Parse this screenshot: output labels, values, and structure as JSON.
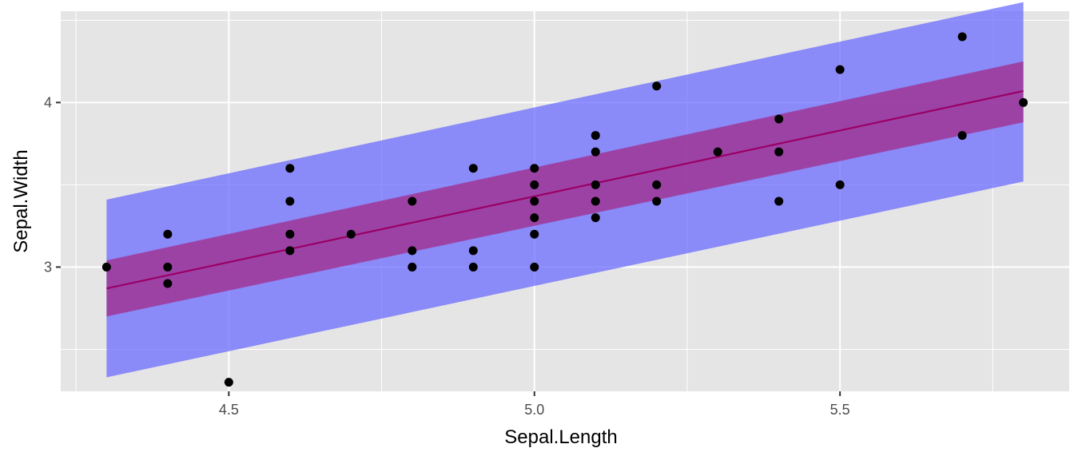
{
  "chart_data": {
    "type": "scatter",
    "title": "",
    "xlabel": "Sepal.Length",
    "ylabel": "Sepal.Width",
    "xlim": [
      4.225,
      5.875
    ],
    "ylim": [
      2.245,
      4.555
    ],
    "x_ticks": [
      {
        "value": 4.5,
        "label": "4.5"
      },
      {
        "value": 5.0,
        "label": "5.0"
      },
      {
        "value": 5.5,
        "label": "5.5"
      }
    ],
    "x_minor_ticks": [
      4.25,
      4.75,
      5.25,
      5.75
    ],
    "y_ticks": [
      {
        "value": 3,
        "label": "3"
      },
      {
        "value": 4,
        "label": "4"
      }
    ],
    "y_minor_ticks": [
      2.5,
      3.5,
      4.5
    ],
    "grid": true,
    "points": [
      [
        4.3,
        3.0
      ],
      [
        4.4,
        2.9
      ],
      [
        4.4,
        3.0
      ],
      [
        4.4,
        3.2
      ],
      [
        4.5,
        2.3
      ],
      [
        4.6,
        3.1
      ],
      [
        4.6,
        3.2
      ],
      [
        4.6,
        3.4
      ],
      [
        4.6,
        3.6
      ],
      [
        4.7,
        3.2
      ],
      [
        4.8,
        3.0
      ],
      [
        4.8,
        3.1
      ],
      [
        4.8,
        3.4
      ],
      [
        4.9,
        3.0
      ],
      [
        4.9,
        3.1
      ],
      [
        4.9,
        3.6
      ],
      [
        5.0,
        3.0
      ],
      [
        5.0,
        3.2
      ],
      [
        5.0,
        3.3
      ],
      [
        5.0,
        3.4
      ],
      [
        5.0,
        3.5
      ],
      [
        5.0,
        3.6
      ],
      [
        5.1,
        3.3
      ],
      [
        5.1,
        3.4
      ],
      [
        5.1,
        3.5
      ],
      [
        5.1,
        3.7
      ],
      [
        5.1,
        3.8
      ],
      [
        5.2,
        3.4
      ],
      [
        5.2,
        3.5
      ],
      [
        5.2,
        4.1
      ],
      [
        5.3,
        3.7
      ],
      [
        5.4,
        3.4
      ],
      [
        5.4,
        3.7
      ],
      [
        5.4,
        3.9
      ],
      [
        5.5,
        3.5
      ],
      [
        5.5,
        4.2
      ],
      [
        5.7,
        3.8
      ],
      [
        5.7,
        4.4
      ],
      [
        5.8,
        4.0
      ]
    ],
    "regression": {
      "x": [
        4.3,
        5.8
      ],
      "fit": [
        2.87,
        4.07
      ],
      "confidence_lower": [
        2.7,
        3.88
      ],
      "confidence_upper": [
        3.04,
        4.25
      ],
      "prediction_lower": [
        2.33,
        3.52
      ],
      "prediction_upper": [
        3.41,
        4.61
      ]
    },
    "colors": {
      "panel_background": "#e5e5e5",
      "grid": "#ffffff",
      "points": "#000000",
      "fit_line": "#990066",
      "confidence_band": "#a03596",
      "prediction_band": "#6666ff"
    }
  }
}
